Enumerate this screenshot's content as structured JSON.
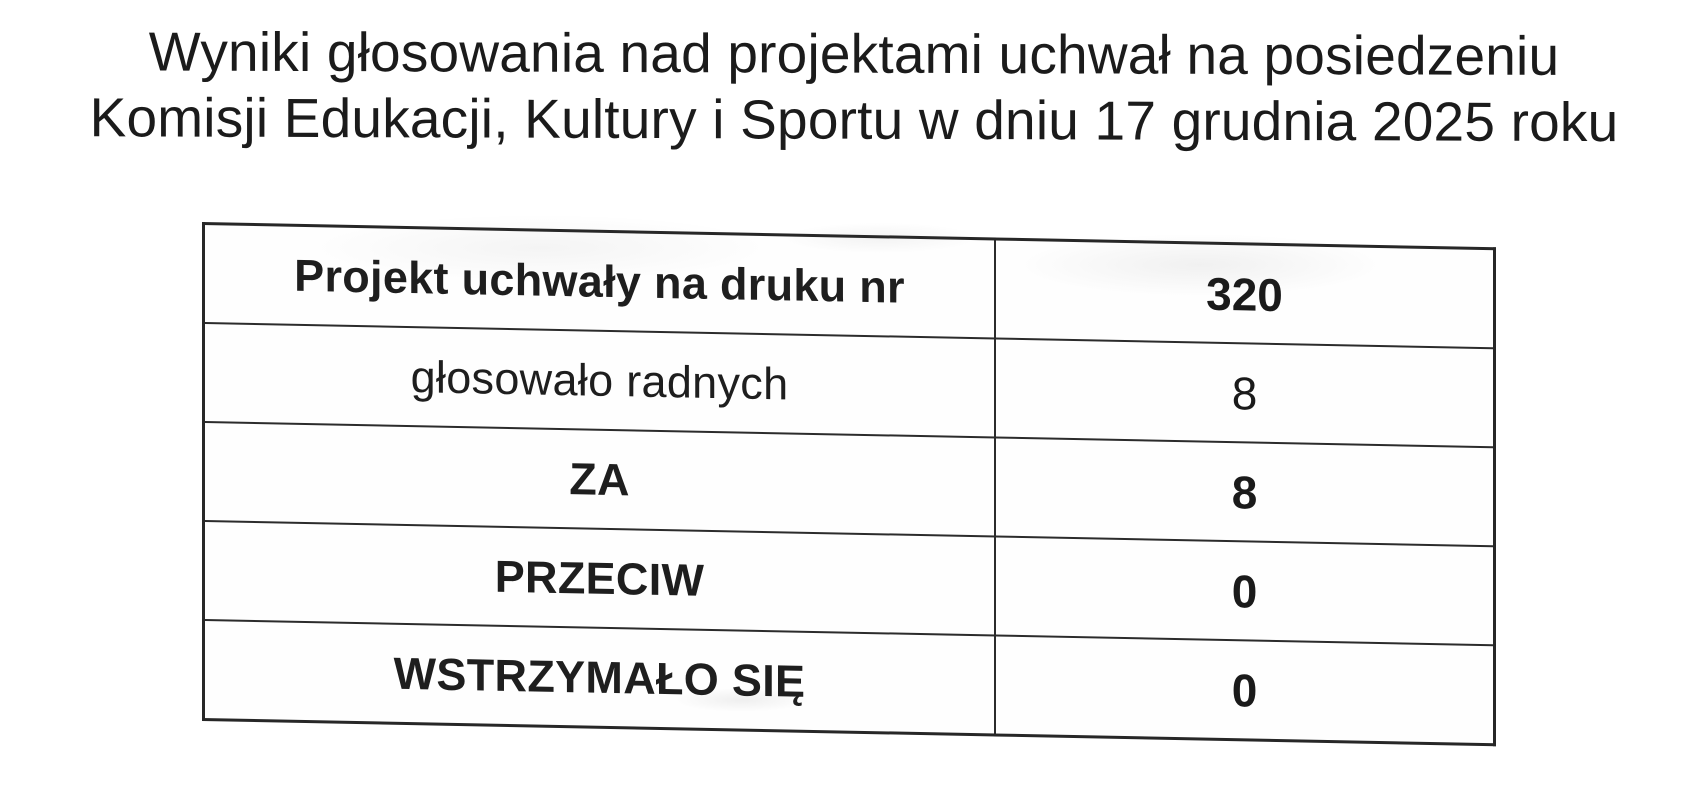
{
  "document": {
    "title_line1": "Wyniki głosowania nad projektami uchwał na posiedzeniu",
    "title_line2": "Komisji Edukacji, Kultury i Sportu w dniu 17 grudnia 2025 roku"
  },
  "vote_table": {
    "rows": [
      {
        "label": "Projekt uchwały na druku nr",
        "value": "320",
        "emphasis": "bold"
      },
      {
        "label": "głosowało radnych",
        "value": "8",
        "emphasis": "regular"
      },
      {
        "label": "ZA",
        "value": "8",
        "emphasis": "bold"
      },
      {
        "label": "PRZECIW",
        "value": "0",
        "emphasis": "bold"
      },
      {
        "label": "WSTRZYMAŁO SIĘ",
        "value": "0",
        "emphasis": "bold"
      }
    ]
  }
}
